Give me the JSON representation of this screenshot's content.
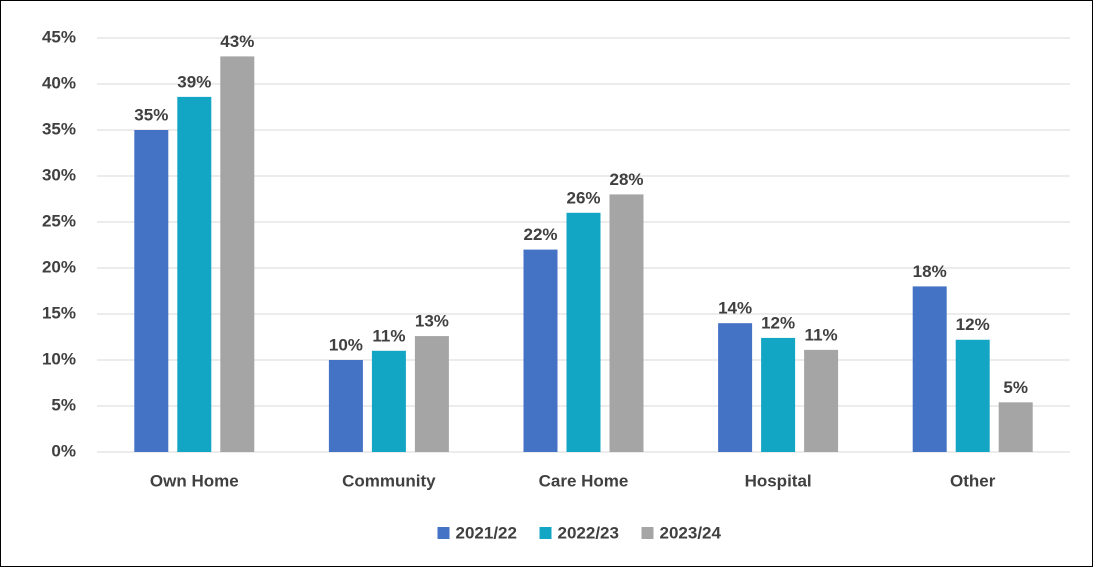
{
  "chart_data": {
    "type": "bar",
    "categories": [
      "Own Home",
      "Community",
      "Care Home",
      "Hospital",
      "Other"
    ],
    "series": [
      {
        "name": "2021/22",
        "color": "#4472c4",
        "values": [
          35,
          10,
          22,
          14,
          18
        ],
        "value_labels": [
          "35%",
          "10%",
          "22%",
          "14%",
          "18%"
        ]
      },
      {
        "name": "2022/23",
        "color": "#12a6c4",
        "values": [
          38.6,
          11,
          26,
          12.4,
          12.2
        ],
        "value_labels": [
          "39%",
          "11%",
          "26%",
          "12%",
          "12%"
        ]
      },
      {
        "name": "2023/24",
        "color": "#a5a5a5",
        "values": [
          43,
          12.6,
          28,
          11.1,
          5.4
        ],
        "value_labels": [
          "43%",
          "13%",
          "28%",
          "11%",
          "5%"
        ]
      }
    ],
    "ylim": [
      0,
      45
    ],
    "yticks": [
      {
        "value": 0,
        "label": "0%"
      },
      {
        "value": 5,
        "label": "5%"
      },
      {
        "value": 10,
        "label": "10%"
      },
      {
        "value": 15,
        "label": "15%"
      },
      {
        "value": 20,
        "label": "20%"
      },
      {
        "value": 25,
        "label": "25%"
      },
      {
        "value": 30,
        "label": "30%"
      },
      {
        "value": 35,
        "label": "35%"
      },
      {
        "value": 40,
        "label": "40%"
      },
      {
        "value": 45,
        "label": "45%"
      }
    ],
    "grid": true,
    "legend": "bottom"
  }
}
